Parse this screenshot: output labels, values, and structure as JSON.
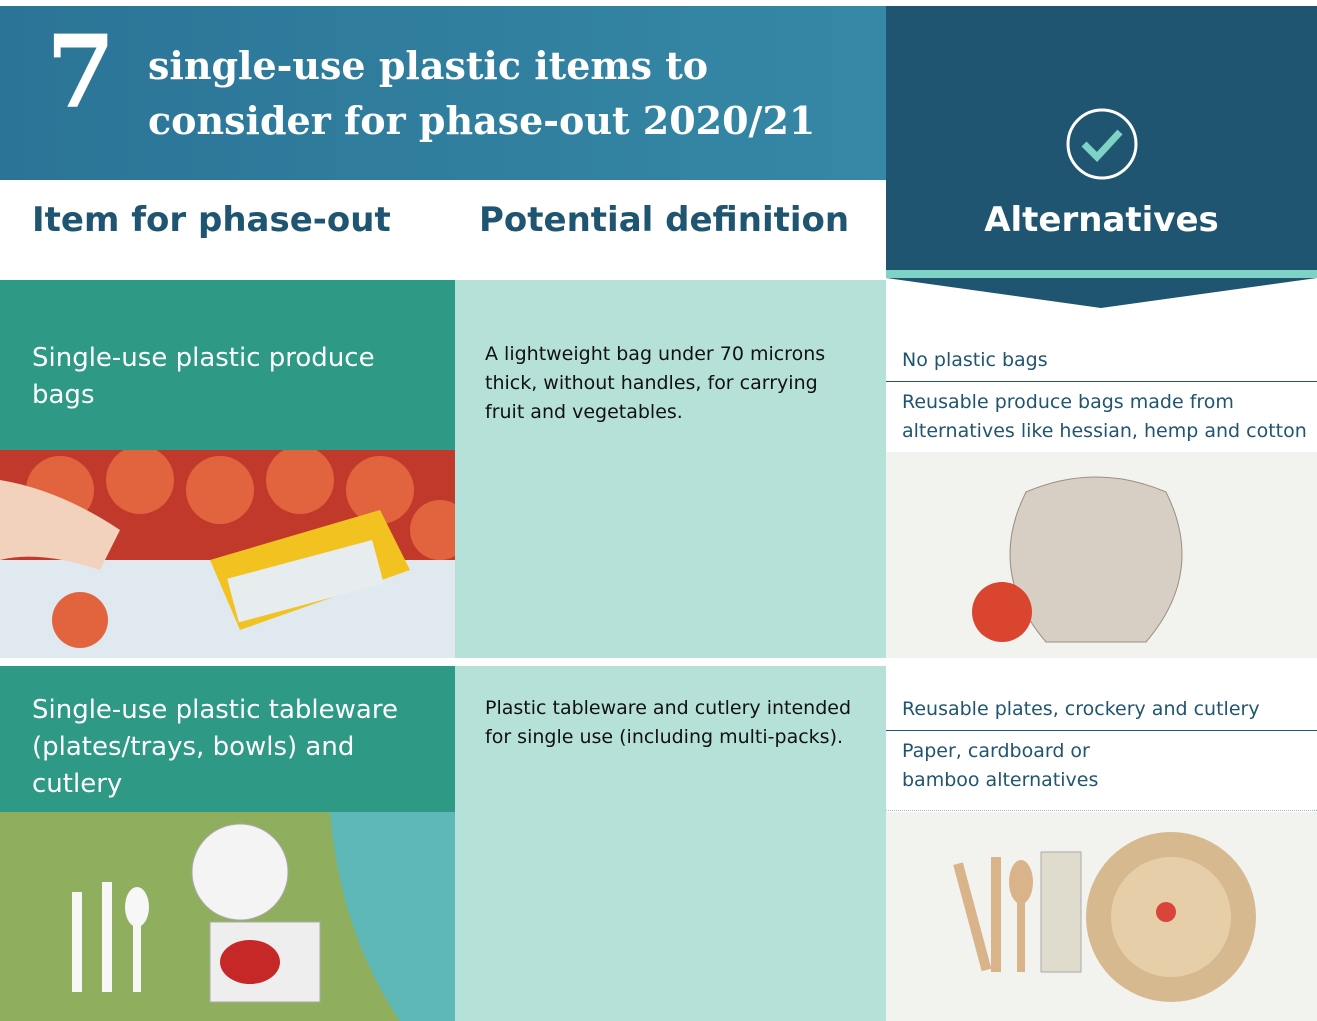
{
  "header": {
    "number": "7",
    "title_lines": [
      "single-use plastic items to",
      "consider for phase-out 2020/21"
    ]
  },
  "columns": [
    "Item for phase-out",
    "Potential definition",
    "Alternatives"
  ],
  "rows": [
    {
      "item": "Single-use plastic produce bags",
      "definition": "A lightweight bag under 70 microns thick, without handles, for carrying fruit and vegetables.",
      "alternatives": [
        "No plastic bags",
        "Reusable produce bags made from alternatives like hessian, hemp and cotton"
      ]
    },
    {
      "item": "Single-use plastic tableware (plates/trays, bowls) and cutlery",
      "definition": "Plastic tableware and cutlery intended for single use (including multi-packs).",
      "alternatives": [
        "Reusable plates, crockery and cutlery",
        "Paper, cardboard or bamboo alternatives"
      ]
    }
  ]
}
